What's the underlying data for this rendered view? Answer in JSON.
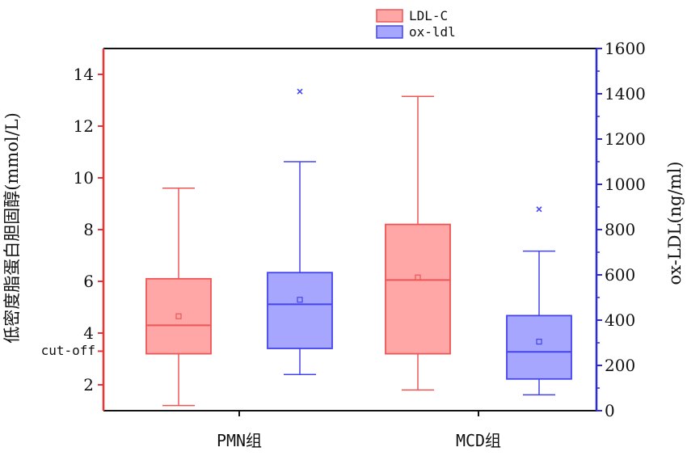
{
  "chart_data": {
    "type": "box",
    "categories": [
      "PMN组",
      "MCD组"
    ],
    "y_left": {
      "label": "低密度脂蛋白胆固醇(mmol/L)",
      "ticks": [
        2,
        4,
        6,
        8,
        10,
        12,
        14
      ],
      "range": [
        1,
        15
      ],
      "color": "#ee3333"
    },
    "y_right": {
      "label": "ox-LDL(ng/ml)",
      "ticks": [
        0,
        200,
        400,
        600,
        800,
        1000,
        1200,
        1400,
        1600
      ],
      "range": [
        0,
        1600
      ],
      "color": "#2b2bdd"
    },
    "annotation": {
      "text": "cut-off",
      "y_left": 3.3
    },
    "series": [
      {
        "name": "LDL-C",
        "axis": "left",
        "fill": "#ffa6a6",
        "stroke": "#ee5555",
        "boxes": [
          {
            "whisker_low": 1.2,
            "q1": 3.2,
            "median": 4.3,
            "q3": 6.1,
            "whisker_high": 9.6,
            "mean": 4.65,
            "outliers": []
          },
          {
            "whisker_low": 1.8,
            "q1": 3.2,
            "median": 6.05,
            "q3": 8.2,
            "whisker_high": 13.15,
            "mean": 6.15,
            "outliers": []
          }
        ]
      },
      {
        "name": "ox-ldl",
        "axis": "right",
        "fill": "#a6a6ff",
        "stroke": "#4444ee",
        "boxes": [
          {
            "whisker_low": 160,
            "q1": 275,
            "median": 470,
            "q3": 610,
            "whisker_high": 1100,
            "mean": 490,
            "outliers": [
              1410
            ]
          },
          {
            "whisker_low": 70,
            "q1": 140,
            "median": 260,
            "q3": 420,
            "whisker_high": 705,
            "mean": 305,
            "outliers": [
              890
            ]
          }
        ]
      }
    ]
  }
}
